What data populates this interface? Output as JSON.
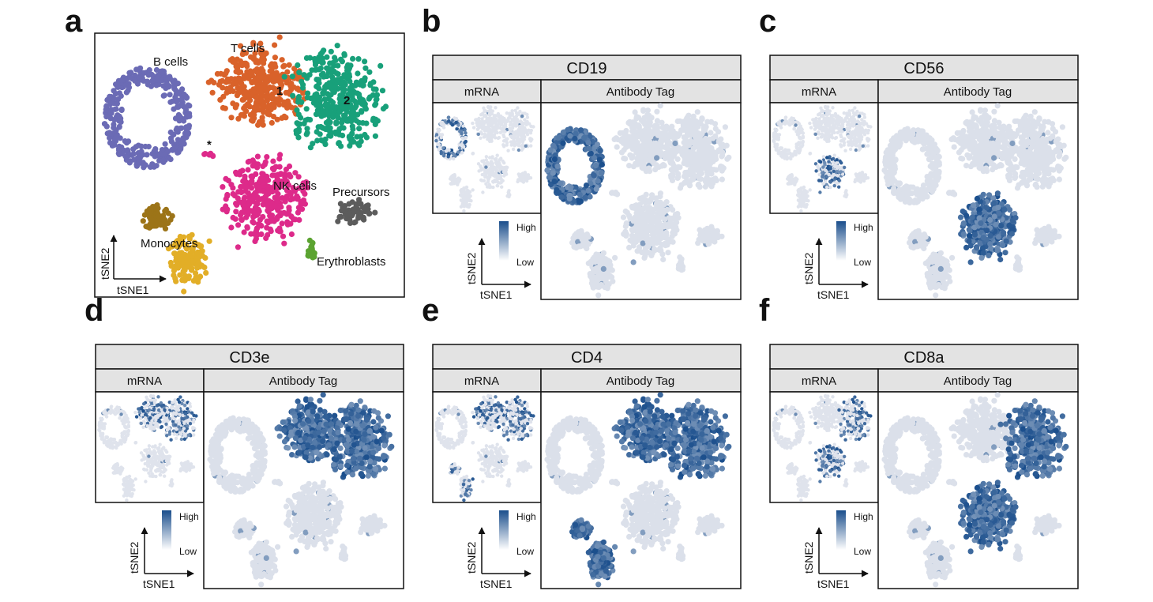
{
  "colors": {
    "B cells": "#6b6bb5",
    "T cells 1": "#d9622a",
    "T cells 2": "#18a07a",
    "NK cells": "#dd2a8a",
    "Monocytes_a": "#9c7418",
    "Monocytes_b": "#e2ae27",
    "Precursors": "#5c5c5c",
    "Erythroblasts": "#5ba331",
    "high": "#1a4e8c",
    "low": "#e9ebf1",
    "header_fill": "#e3e3e3"
  },
  "chart_data": [
    {
      "id": "a",
      "panel_label": "a",
      "type": "scatter",
      "xlabel": "tSNE1",
      "ylabel": "tSNE2",
      "annotations": [
        "B cells",
        "T cells",
        "1",
        "2",
        "*",
        "NK cells",
        "Precursors",
        "Monocytes",
        "Erythroblasts"
      ],
      "clusters": [
        {
          "name": "B cells",
          "x": -31,
          "y": 21
        },
        {
          "name": "T cells 1",
          "x": 2,
          "y": 27
        },
        {
          "name": "T cells 2",
          "x": 14,
          "y": 23
        },
        {
          "name": "NK cells",
          "x": 0,
          "y": -3
        },
        {
          "name": "Monocytes",
          "x": -26,
          "y": -17
        },
        {
          "name": "Precursors",
          "x": 20,
          "y": -6
        },
        {
          "name": "Erythroblasts",
          "x": 16,
          "y": -17
        },
        {
          "name": "*",
          "x": -14,
          "y": 7
        }
      ]
    },
    {
      "id": "b",
      "panel_label": "b",
      "type": "scatter",
      "title": "CD19",
      "subtitles": [
        "mRNA",
        "Antibody Tag"
      ],
      "xlabel": "tSNE1",
      "ylabel": "tSNE2",
      "legend": {
        "high": "High",
        "low": "Low"
      },
      "high_clusters": [
        "B cells"
      ]
    },
    {
      "id": "c",
      "panel_label": "c",
      "type": "scatter",
      "title": "CD56",
      "subtitles": [
        "mRNA",
        "Antibody Tag"
      ],
      "xlabel": "tSNE1",
      "ylabel": "tSNE2",
      "legend": {
        "high": "High",
        "low": "Low"
      },
      "high_clusters": [
        "NK cells"
      ]
    },
    {
      "id": "d",
      "panel_label": "d",
      "type": "scatter",
      "title": "CD3e",
      "subtitles": [
        "mRNA",
        "Antibody Tag"
      ],
      "xlabel": "tSNE1",
      "ylabel": "tSNE2",
      "legend": {
        "high": "High",
        "low": "Low"
      },
      "high_clusters": [
        "T cells 1",
        "T cells 2"
      ]
    },
    {
      "id": "e",
      "panel_label": "e",
      "type": "scatter",
      "title": "CD4",
      "subtitles": [
        "mRNA",
        "Antibody Tag"
      ],
      "xlabel": "tSNE1",
      "ylabel": "tSNE2",
      "legend": {
        "high": "High",
        "low": "Low"
      },
      "high_clusters": [
        "T cells 1",
        "T cells 2",
        "Monocytes"
      ]
    },
    {
      "id": "f",
      "panel_label": "f",
      "type": "scatter",
      "title": "CD8a",
      "subtitles": [
        "mRNA",
        "Antibody Tag"
      ],
      "xlabel": "tSNE1",
      "ylabel": "tSNE2",
      "legend": {
        "high": "High",
        "low": "Low"
      },
      "high_clusters": [
        "T cells 2",
        "NK cells"
      ]
    }
  ]
}
